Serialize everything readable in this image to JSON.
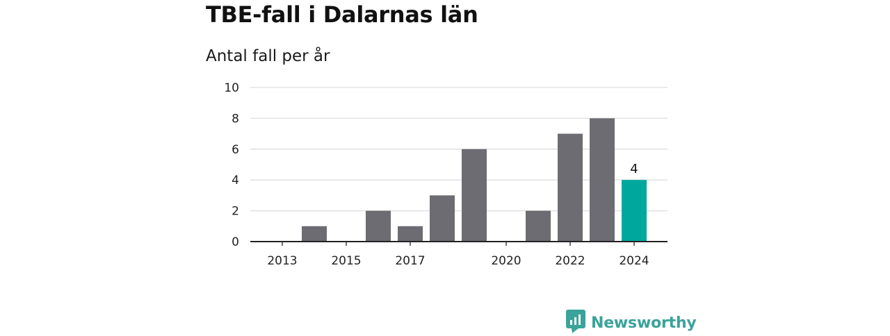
{
  "title": "TBE-fall i Dalarnas län",
  "subtitle": "Antal fall per år",
  "brand": {
    "name": "Newsworthy",
    "icon": "newsworthy-logo-icon"
  },
  "colors": {
    "bar": "#6d6c72",
    "highlight": "#00a79d",
    "grid": "#dddddd",
    "axis": "#222222",
    "brand": "#3aa39a"
  },
  "chart_data": {
    "type": "bar",
    "title": "TBE-fall i Dalarnas län",
    "subtitle": "Antal fall per år",
    "categories": [
      "2013",
      "2014",
      "2015",
      "2016",
      "2017",
      "2018",
      "2019",
      "2020",
      "2021",
      "2022",
      "2023",
      "2024"
    ],
    "x_tick_labels": [
      "2013",
      "2015",
      "2017",
      "2020",
      "2022",
      "2024"
    ],
    "values": [
      0,
      1,
      0,
      2,
      1,
      3,
      6,
      0,
      2,
      7,
      8,
      4
    ],
    "highlight_category": "2024",
    "data_labels": [
      {
        "category": "2024",
        "text": "4"
      }
    ],
    "ylim": [
      0,
      10
    ],
    "y_ticks": [
      0,
      2,
      4,
      6,
      8,
      10
    ],
    "grid": true,
    "xlabel": "",
    "ylabel": ""
  }
}
